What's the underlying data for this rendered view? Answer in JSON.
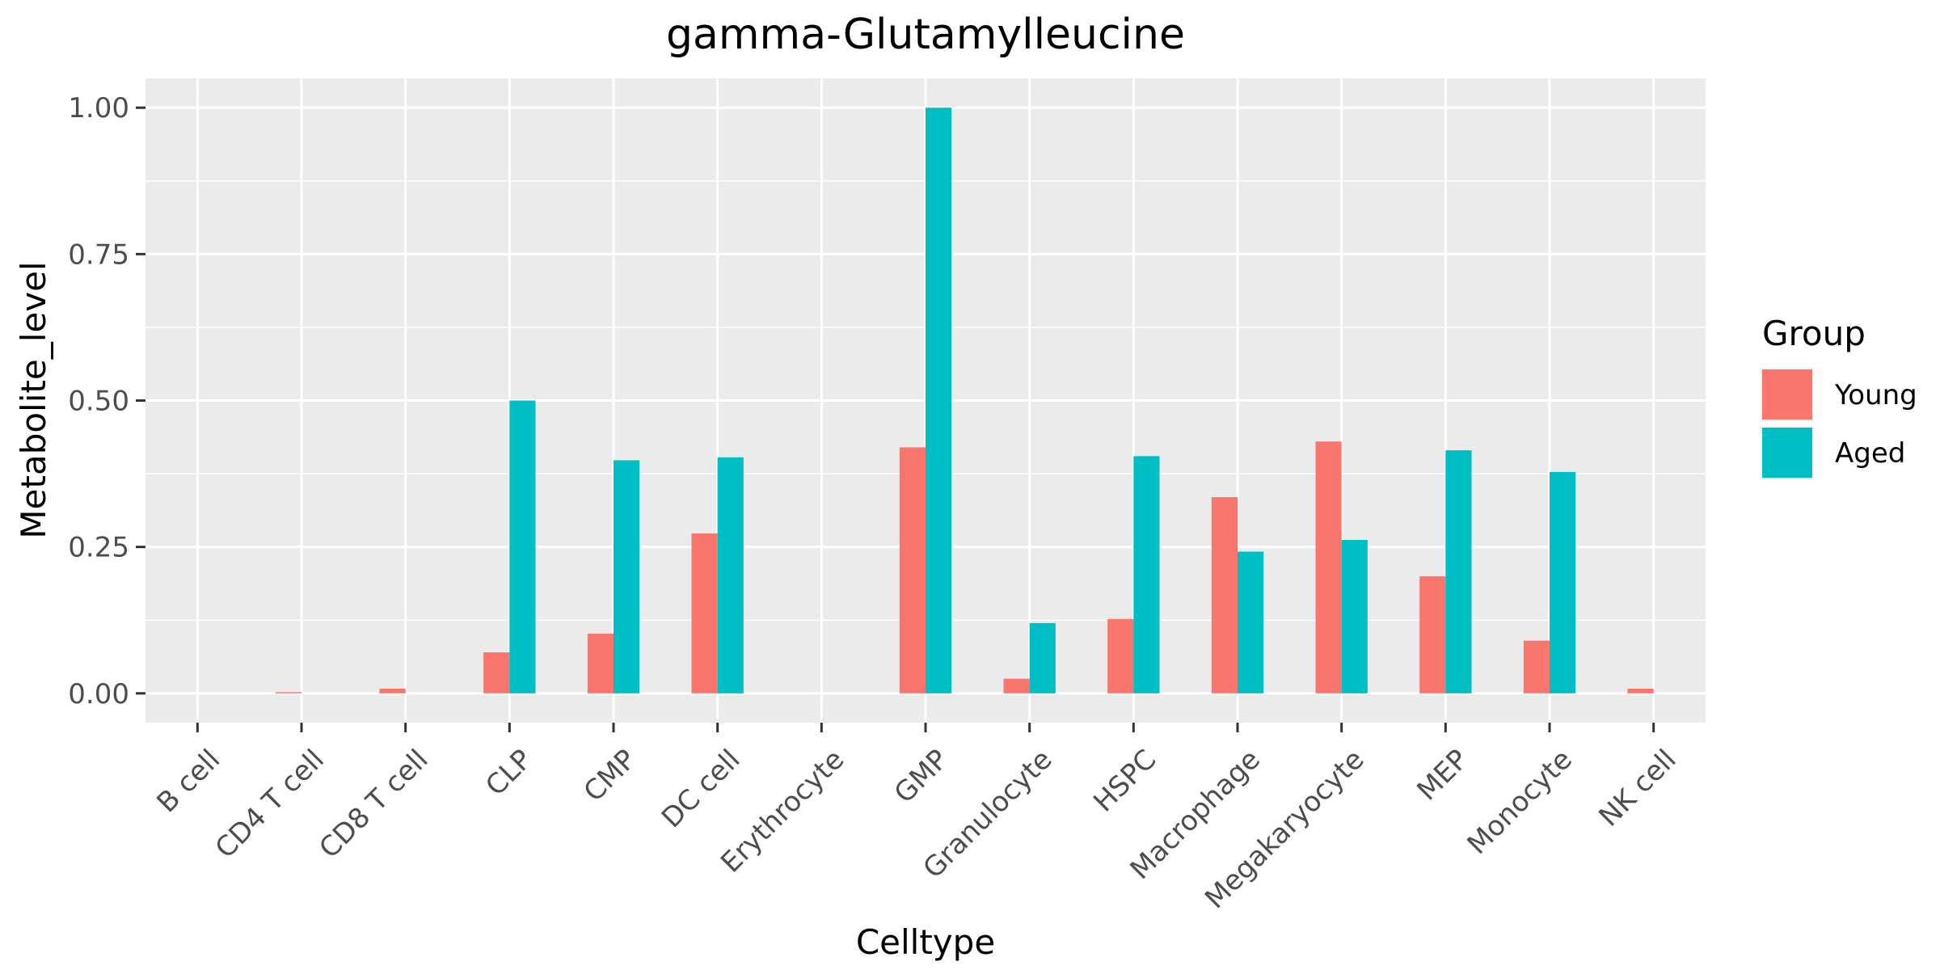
{
  "chart_data": {
    "type": "bar",
    "title": "gamma-Glutamylleucine",
    "xlabel": "Celltype",
    "ylabel": "Metabolite_level",
    "ylim": [
      -0.05,
      1.05
    ],
    "yticks": [
      0.0,
      0.25,
      0.5,
      0.75,
      1.0
    ],
    "ytick_labels": [
      "0.00",
      "0.25",
      "0.50",
      "0.75",
      "1.00"
    ],
    "categories": [
      "B cell",
      "CD4 T cell",
      "CD8 T cell",
      "CLP",
      "CMP",
      "DC cell",
      "Erythrocyte",
      "GMP",
      "Granulocyte",
      "HSPC",
      "Macrophage",
      "Megakaryocyte",
      "MEP",
      "Monocyte",
      "NK cell"
    ],
    "series": [
      {
        "name": "Young",
        "color": "#F8766D",
        "values": [
          0.0,
          0.002,
          0.008,
          0.07,
          0.102,
          0.273,
          0.0,
          0.42,
          0.025,
          0.127,
          0.335,
          0.43,
          0.2,
          0.09,
          0.008
        ]
      },
      {
        "name": "Aged",
        "color": "#00BFC4",
        "values": [
          0.0,
          0.0,
          0.0,
          0.5,
          0.398,
          0.403,
          0.0,
          1.0,
          0.12,
          0.405,
          0.242,
          0.262,
          0.415,
          0.378,
          0.0
        ]
      }
    ],
    "grid": true,
    "legend": {
      "title": "Group",
      "position": "right"
    },
    "panel_background": "#EBEBEB"
  }
}
